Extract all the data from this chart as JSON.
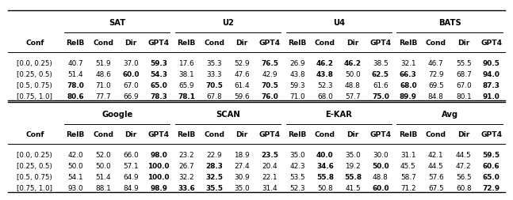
{
  "top_section_headers": [
    "SAT",
    "U2",
    "U4",
    "BATS"
  ],
  "bottom_section_headers": [
    "Google",
    "SCAN",
    "E-KAR",
    "Avg"
  ],
  "conf_labels": [
    "[0.0, 0.25)",
    "[0.25, 0.5)",
    "[0.5, 0.75)",
    "[0.75, 1.0]"
  ],
  "sub_cols": [
    "RelB",
    "Cond",
    "Dir",
    "GPT4"
  ],
  "top_data": {
    "SAT": {
      "RelB": [
        40.7,
        51.4,
        78.0,
        80.6
      ],
      "Cond": [
        51.9,
        48.6,
        71.0,
        77.7
      ],
      "Dir": [
        37.0,
        60.0,
        67.0,
        66.9
      ],
      "GPT4": [
        59.3,
        54.3,
        65.0,
        78.3
      ]
    },
    "U2": {
      "RelB": [
        17.6,
        38.1,
        65.9,
        78.1
      ],
      "Cond": [
        35.3,
        33.3,
        70.5,
        67.8
      ],
      "Dir": [
        52.9,
        47.6,
        61.4,
        59.6
      ],
      "GPT4": [
        76.5,
        42.9,
        70.5,
        76.0
      ]
    },
    "U4": {
      "RelB": [
        26.9,
        43.8,
        59.3,
        71.0
      ],
      "Cond": [
        46.2,
        43.8,
        52.3,
        68.0
      ],
      "Dir": [
        46.2,
        50.0,
        48.8,
        57.7
      ],
      "GPT4": [
        38.5,
        62.5,
        61.6,
        75.0
      ]
    },
    "BATS": {
      "RelB": [
        32.1,
        66.3,
        68.0,
        89.9
      ],
      "Cond": [
        46.7,
        72.9,
        69.5,
        84.8
      ],
      "Dir": [
        55.5,
        68.7,
        67.0,
        80.1
      ],
      "GPT4": [
        90.5,
        94.0,
        87.3,
        91.0
      ]
    }
  },
  "bottom_data": {
    "Google": {
      "RelB": [
        42.0,
        50.0,
        54.1,
        93.0
      ],
      "Cond": [
        52.0,
        50.0,
        51.4,
        88.1
      ],
      "Dir": [
        66.0,
        57.1,
        64.9,
        84.9
      ],
      "GPT4": [
        98.0,
        100.0,
        100.0,
        98.9
      ]
    },
    "SCAN": {
      "RelB": [
        23.2,
        26.7,
        32.2,
        33.6
      ],
      "Cond": [
        22.9,
        28.3,
        32.5,
        35.5
      ],
      "Dir": [
        18.9,
        27.4,
        30.9,
        35.0
      ],
      "GPT4": [
        23.5,
        20.4,
        22.1,
        31.4
      ]
    },
    "E-KAR": {
      "RelB": [
        35.0,
        42.3,
        53.5,
        52.3
      ],
      "Cond": [
        40.0,
        34.6,
        55.8,
        50.8
      ],
      "Dir": [
        35.0,
        19.2,
        55.8,
        41.5
      ],
      "GPT4": [
        30.0,
        50.0,
        48.8,
        60.0
      ]
    },
    "Avg": {
      "RelB": [
        31.1,
        45.5,
        58.7,
        71.2
      ],
      "Cond": [
        42.1,
        44.5,
        57.6,
        67.5
      ],
      "Dir": [
        44.5,
        47.2,
        56.5,
        60.8
      ],
      "GPT4": [
        59.5,
        60.6,
        65.0,
        72.9
      ]
    }
  },
  "top_bold": {
    "SAT": {
      "GPT4": [
        0,
        1,
        2,
        3
      ],
      "Dir": [
        1
      ],
      "RelB": [
        2,
        3
      ]
    },
    "U2": {
      "GPT4": [
        0,
        2,
        3
      ],
      "RelB": [
        3
      ],
      "Cond": [
        2
      ]
    },
    "U4": {
      "GPT4": [
        1,
        3
      ],
      "Cond": [
        0,
        1
      ],
      "Dir": [
        0
      ]
    },
    "BATS": {
      "GPT4": [
        0,
        1,
        2,
        3
      ],
      "RelB": [
        1,
        2,
        3
      ]
    }
  },
  "bottom_bold": {
    "Google": {
      "GPT4": [
        0,
        1,
        2,
        3
      ]
    },
    "SCAN": {
      "GPT4": [
        0
      ],
      "Cond": [
        1,
        2,
        3
      ],
      "RelB": [
        3
      ]
    },
    "E-KAR": {
      "Cond": [
        0,
        1,
        2
      ],
      "Dir": [
        2
      ],
      "GPT4": [
        1,
        3
      ]
    },
    "Avg": {
      "GPT4": [
        0,
        1,
        2,
        3
      ]
    }
  }
}
